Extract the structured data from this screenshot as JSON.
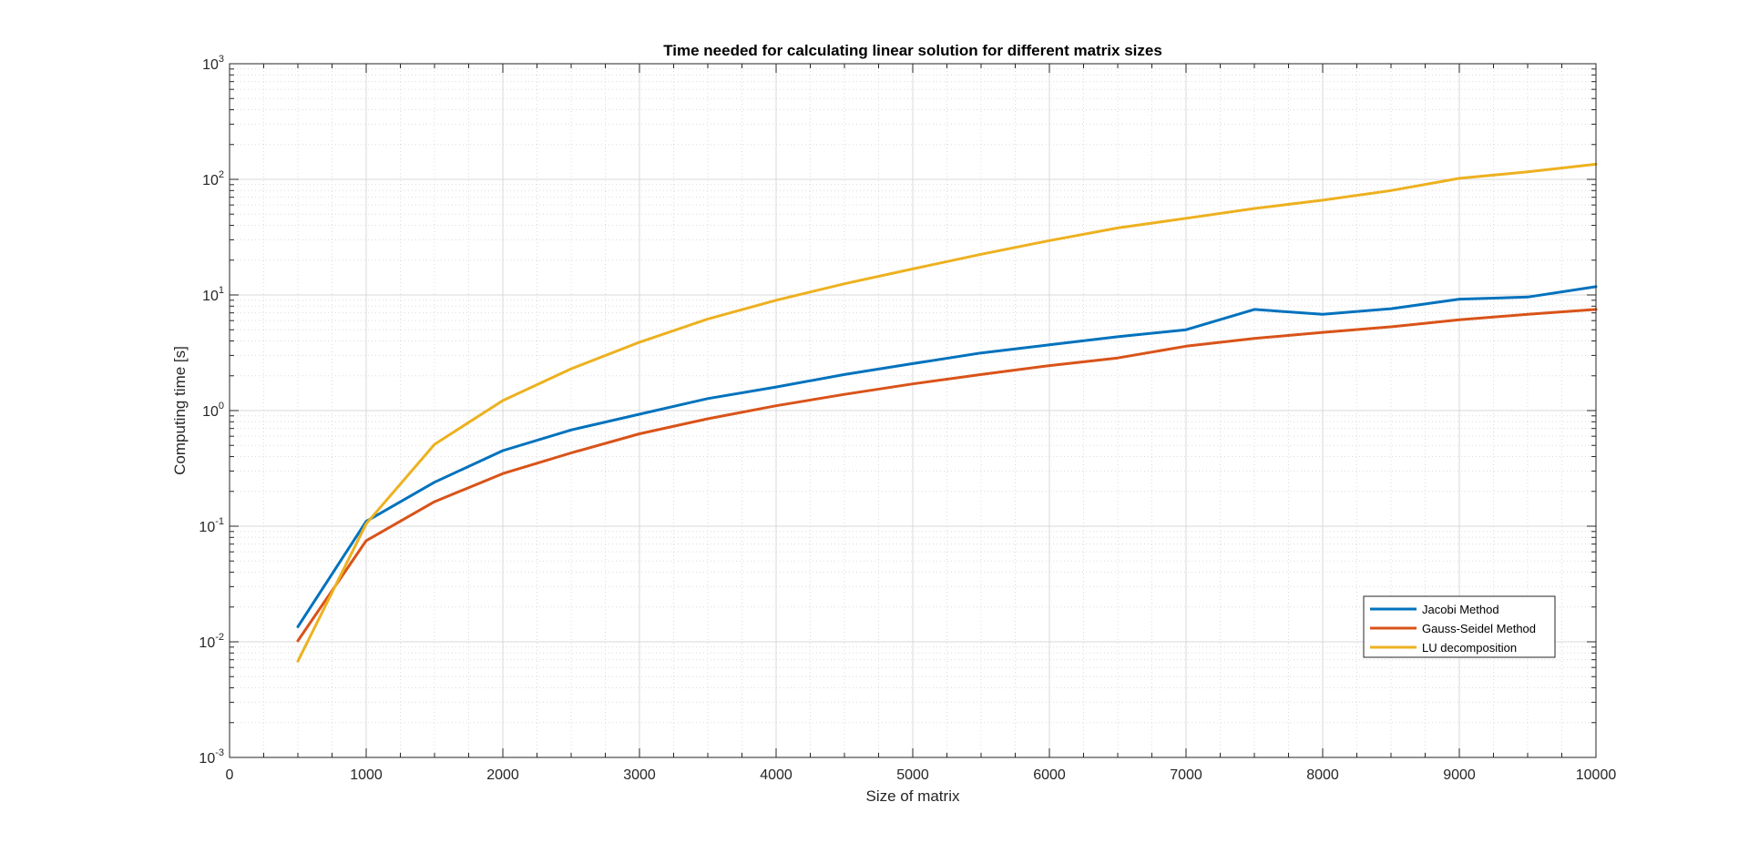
{
  "chart_data": {
    "type": "line",
    "title": "Time needed for calculating linear solution for different matrix sizes",
    "xlabel": "Size of matrix",
    "ylabel": "Computing time [s]",
    "xlim": [
      0,
      10000
    ],
    "ylim": [
      0.001,
      1000
    ],
    "yscale": "log",
    "grid": true,
    "minor_grid": true,
    "legend_position": "bottom-right",
    "x_ticks": [
      0,
      1000,
      2000,
      3000,
      4000,
      5000,
      6000,
      7000,
      8000,
      9000,
      10000
    ],
    "x_tick_labels": [
      "0",
      "1000",
      "2000",
      "3000",
      "4000",
      "5000",
      "6000",
      "7000",
      "8000",
      "9000",
      "10000"
    ],
    "y_ticks": [
      {
        "value": 0.001,
        "base": "10",
        "exp": "-3"
      },
      {
        "value": 0.01,
        "base": "10",
        "exp": "-2"
      },
      {
        "value": 0.1,
        "base": "10",
        "exp": "-1"
      },
      {
        "value": 1,
        "base": "10",
        "exp": "0"
      },
      {
        "value": 10,
        "base": "10",
        "exp": "1"
      },
      {
        "value": 100,
        "base": "10",
        "exp": "2"
      },
      {
        "value": 1000,
        "base": "10",
        "exp": "3"
      }
    ],
    "x": [
      500,
      1000,
      1500,
      2000,
      2500,
      3000,
      3500,
      4000,
      4500,
      5000,
      5500,
      6000,
      6500,
      7000,
      7500,
      8000,
      8500,
      9000,
      9500,
      10000
    ],
    "series": [
      {
        "name": "Jacobi Method",
        "color": "#0072BD",
        "values": [
          0.0135,
          0.11,
          0.24,
          0.45,
          0.68,
          0.93,
          1.27,
          1.6,
          2.05,
          2.55,
          3.15,
          3.7,
          4.35,
          5.0,
          7.5,
          6.8,
          7.6,
          9.2,
          9.6,
          11.8
        ]
      },
      {
        "name": "Gauss-Seidel Method",
        "color": "#D95319",
        "values": [
          0.0102,
          0.075,
          0.163,
          0.285,
          0.43,
          0.63,
          0.85,
          1.1,
          1.38,
          1.7,
          2.05,
          2.45,
          2.85,
          3.6,
          4.2,
          4.75,
          5.3,
          6.1,
          6.8,
          7.5
        ]
      },
      {
        "name": "LU decomposition",
        "color": "#EDB120",
        "values": [
          0.0068,
          0.105,
          0.51,
          1.22,
          2.3,
          3.9,
          6.2,
          9.0,
          12.5,
          16.8,
          22.5,
          29.5,
          38.0,
          46.0,
          56.0,
          66.0,
          80.0,
          102.0,
          116.0,
          135.0
        ]
      }
    ]
  }
}
